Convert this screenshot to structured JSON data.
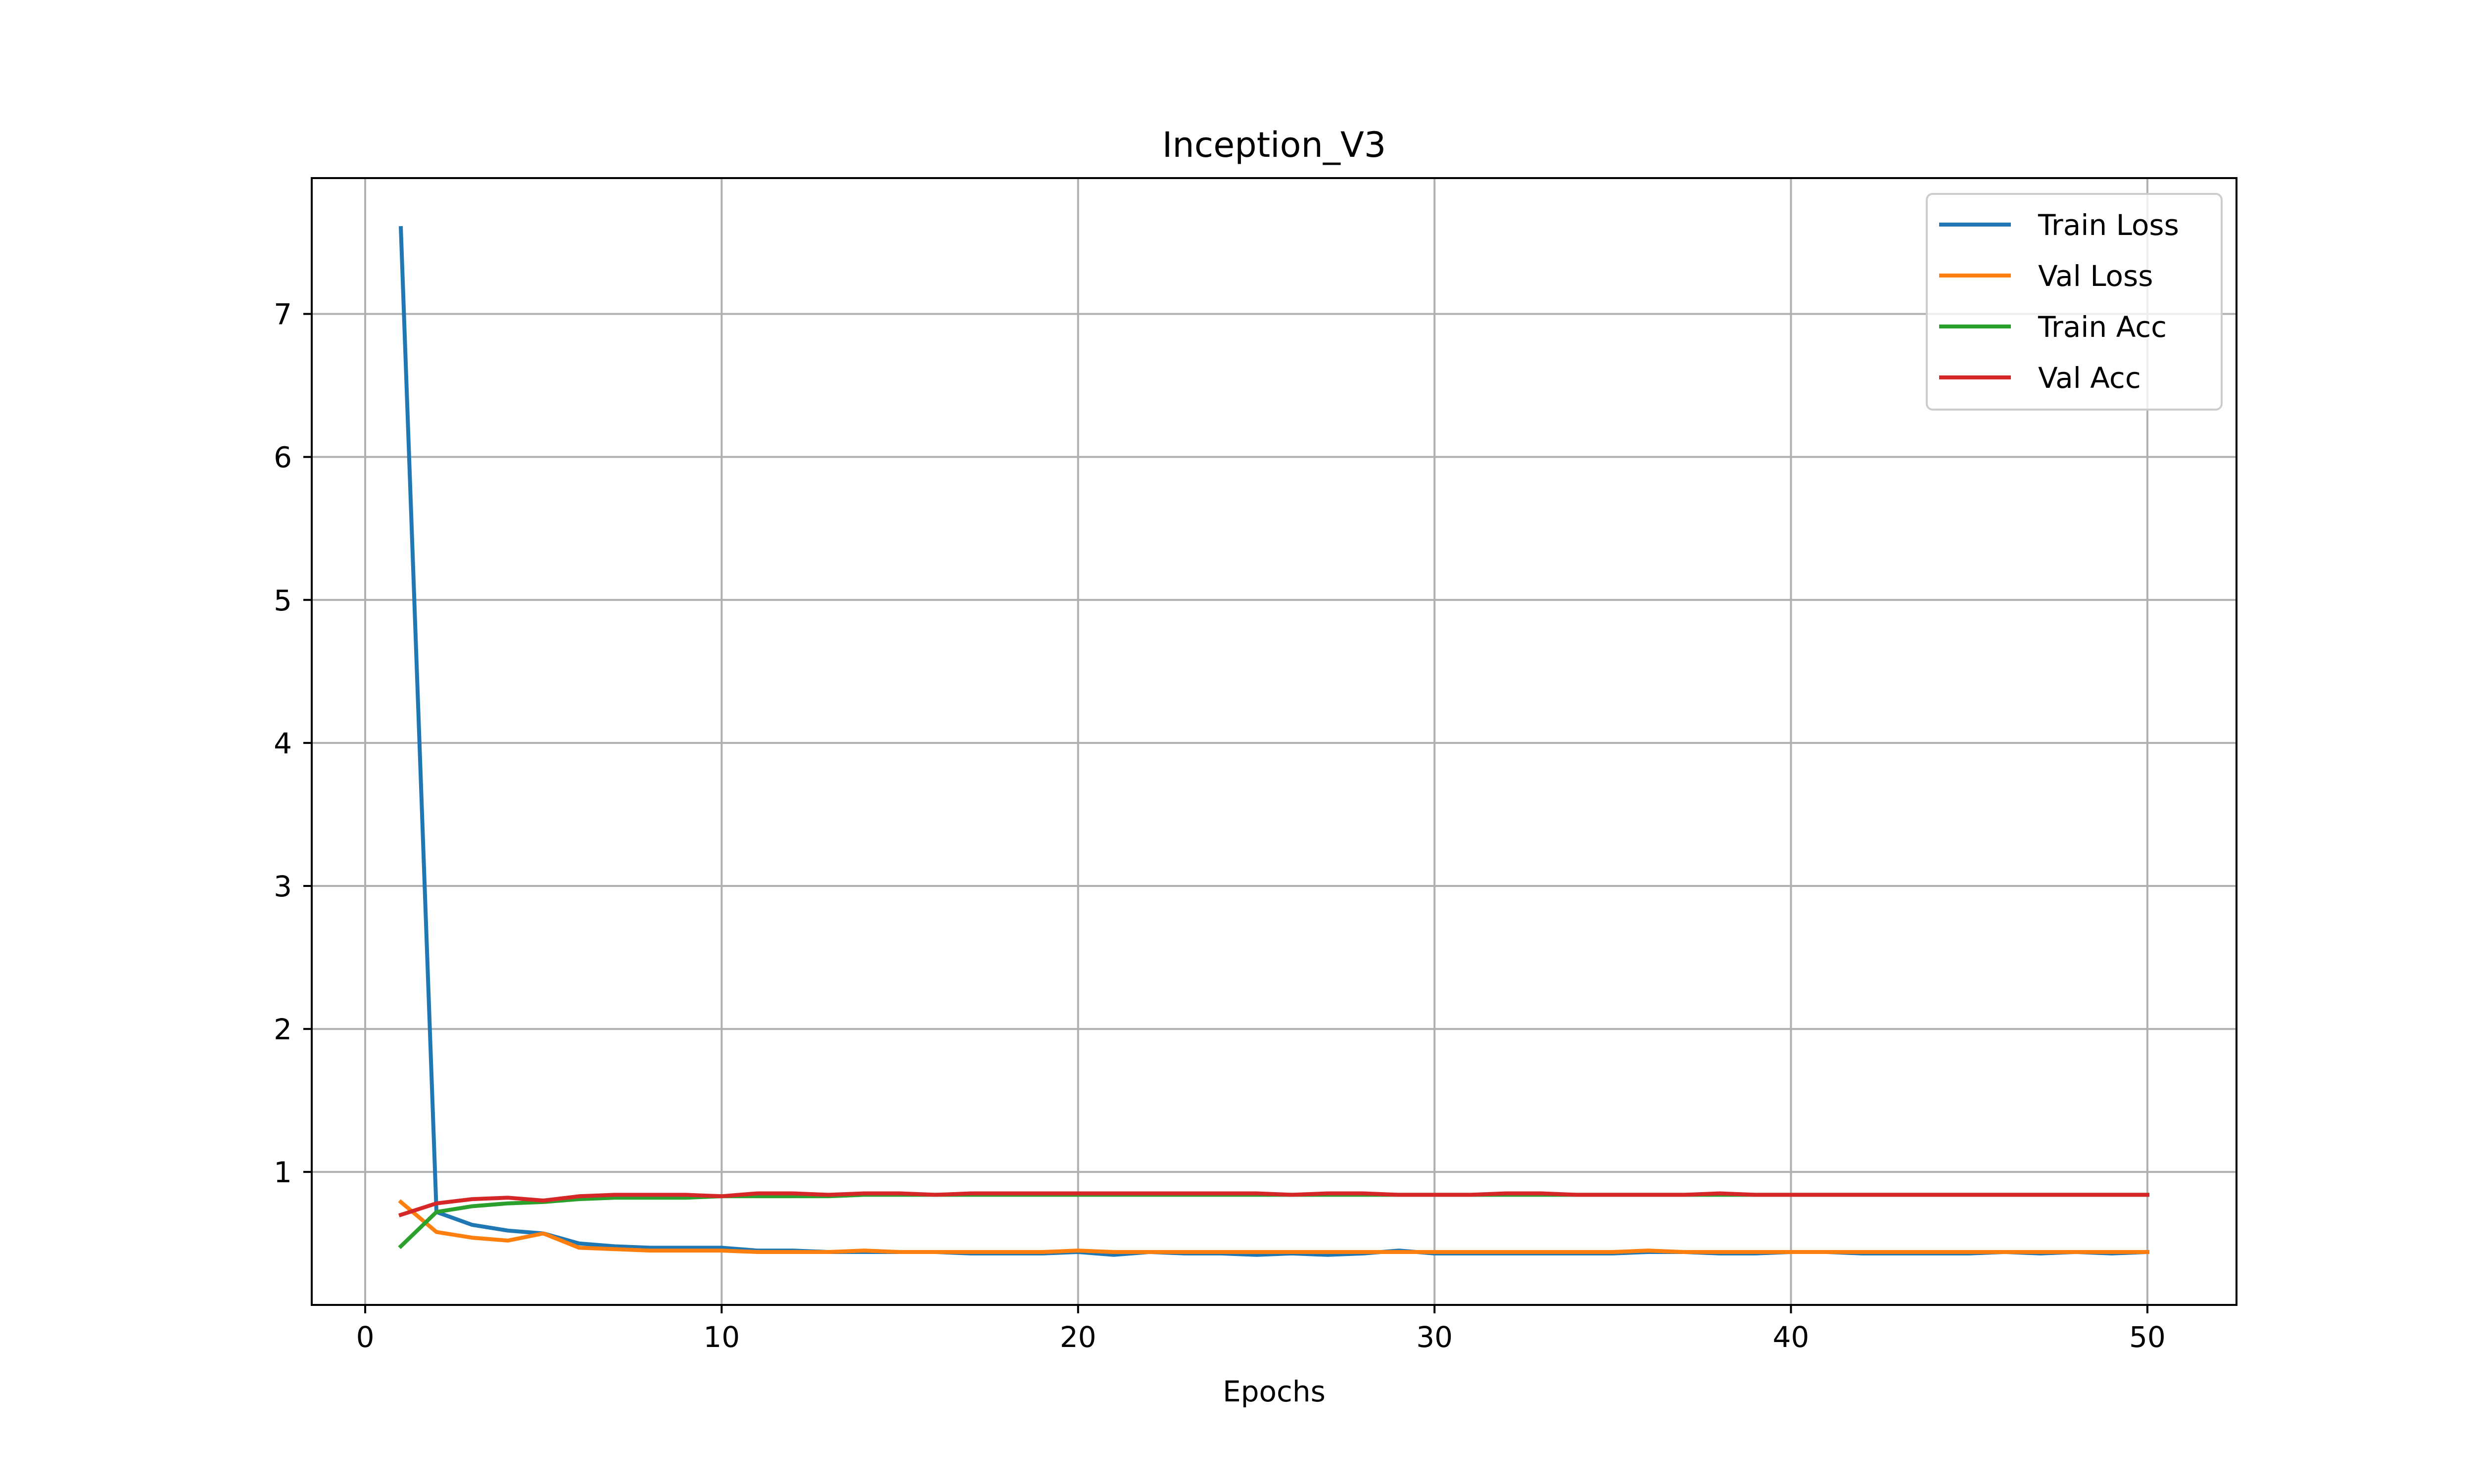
{
  "chart_data": {
    "type": "line",
    "title": "Inception_V3",
    "xlabel": "Epochs",
    "ylabel": "",
    "xlim": [
      -1.5,
      52.5
    ],
    "ylim": [
      0.07,
      7.95
    ],
    "xticks": [
      0,
      10,
      20,
      30,
      40,
      50
    ],
    "yticks": [
      1,
      2,
      3,
      4,
      5,
      6,
      7
    ],
    "grid": true,
    "legend_position": "top-right",
    "x": [
      1,
      2,
      3,
      4,
      5,
      6,
      7,
      8,
      9,
      10,
      11,
      12,
      13,
      14,
      15,
      16,
      17,
      18,
      19,
      20,
      21,
      22,
      23,
      24,
      25,
      26,
      27,
      28,
      29,
      30,
      31,
      32,
      33,
      34,
      35,
      36,
      37,
      38,
      39,
      40,
      41,
      42,
      43,
      44,
      45,
      46,
      47,
      48,
      49,
      50
    ],
    "series": [
      {
        "name": "Train Loss",
        "color": "#1f77b4",
        "values": [
          7.6,
          0.72,
          0.63,
          0.59,
          0.57,
          0.5,
          0.48,
          0.47,
          0.47,
          0.47,
          0.45,
          0.45,
          0.44,
          0.44,
          0.44,
          0.44,
          0.43,
          0.43,
          0.43,
          0.44,
          0.42,
          0.44,
          0.43,
          0.43,
          0.42,
          0.43,
          0.42,
          0.43,
          0.45,
          0.43,
          0.43,
          0.43,
          0.43,
          0.43,
          0.43,
          0.44,
          0.44,
          0.43,
          0.43,
          0.44,
          0.44,
          0.43,
          0.43,
          0.43,
          0.43,
          0.44,
          0.43,
          0.44,
          0.43,
          0.44
        ]
      },
      {
        "name": "Val Loss",
        "color": "#ff7f0e",
        "values": [
          0.79,
          0.58,
          0.54,
          0.52,
          0.57,
          0.47,
          0.46,
          0.45,
          0.45,
          0.45,
          0.44,
          0.44,
          0.44,
          0.45,
          0.44,
          0.44,
          0.44,
          0.44,
          0.44,
          0.45,
          0.44,
          0.44,
          0.44,
          0.44,
          0.44,
          0.44,
          0.44,
          0.44,
          0.44,
          0.44,
          0.44,
          0.44,
          0.44,
          0.44,
          0.44,
          0.45,
          0.44,
          0.44,
          0.44,
          0.44,
          0.44,
          0.44,
          0.44,
          0.44,
          0.44,
          0.44,
          0.44,
          0.44,
          0.44,
          0.44
        ]
      },
      {
        "name": "Train Acc",
        "color": "#2ca02c",
        "values": [
          0.48,
          0.72,
          0.76,
          0.78,
          0.79,
          0.81,
          0.82,
          0.82,
          0.82,
          0.83,
          0.83,
          0.83,
          0.83,
          0.84,
          0.84,
          0.84,
          0.84,
          0.84,
          0.84,
          0.84,
          0.84,
          0.84,
          0.84,
          0.84,
          0.84,
          0.84,
          0.84,
          0.84,
          0.84,
          0.84,
          0.84,
          0.84,
          0.84,
          0.84,
          0.84,
          0.84,
          0.84,
          0.84,
          0.84,
          0.84,
          0.84,
          0.84,
          0.84,
          0.84,
          0.84,
          0.84,
          0.84,
          0.84,
          0.84,
          0.84
        ]
      },
      {
        "name": "Val Acc",
        "color": "#d62728",
        "values": [
          0.7,
          0.78,
          0.81,
          0.82,
          0.8,
          0.83,
          0.84,
          0.84,
          0.84,
          0.83,
          0.85,
          0.85,
          0.84,
          0.85,
          0.85,
          0.84,
          0.85,
          0.85,
          0.85,
          0.85,
          0.85,
          0.85,
          0.85,
          0.85,
          0.85,
          0.84,
          0.85,
          0.85,
          0.84,
          0.84,
          0.84,
          0.85,
          0.85,
          0.84,
          0.84,
          0.84,
          0.84,
          0.85,
          0.84,
          0.84,
          0.84,
          0.84,
          0.84,
          0.84,
          0.84,
          0.84,
          0.84,
          0.84,
          0.84,
          0.84
        ]
      }
    ]
  }
}
